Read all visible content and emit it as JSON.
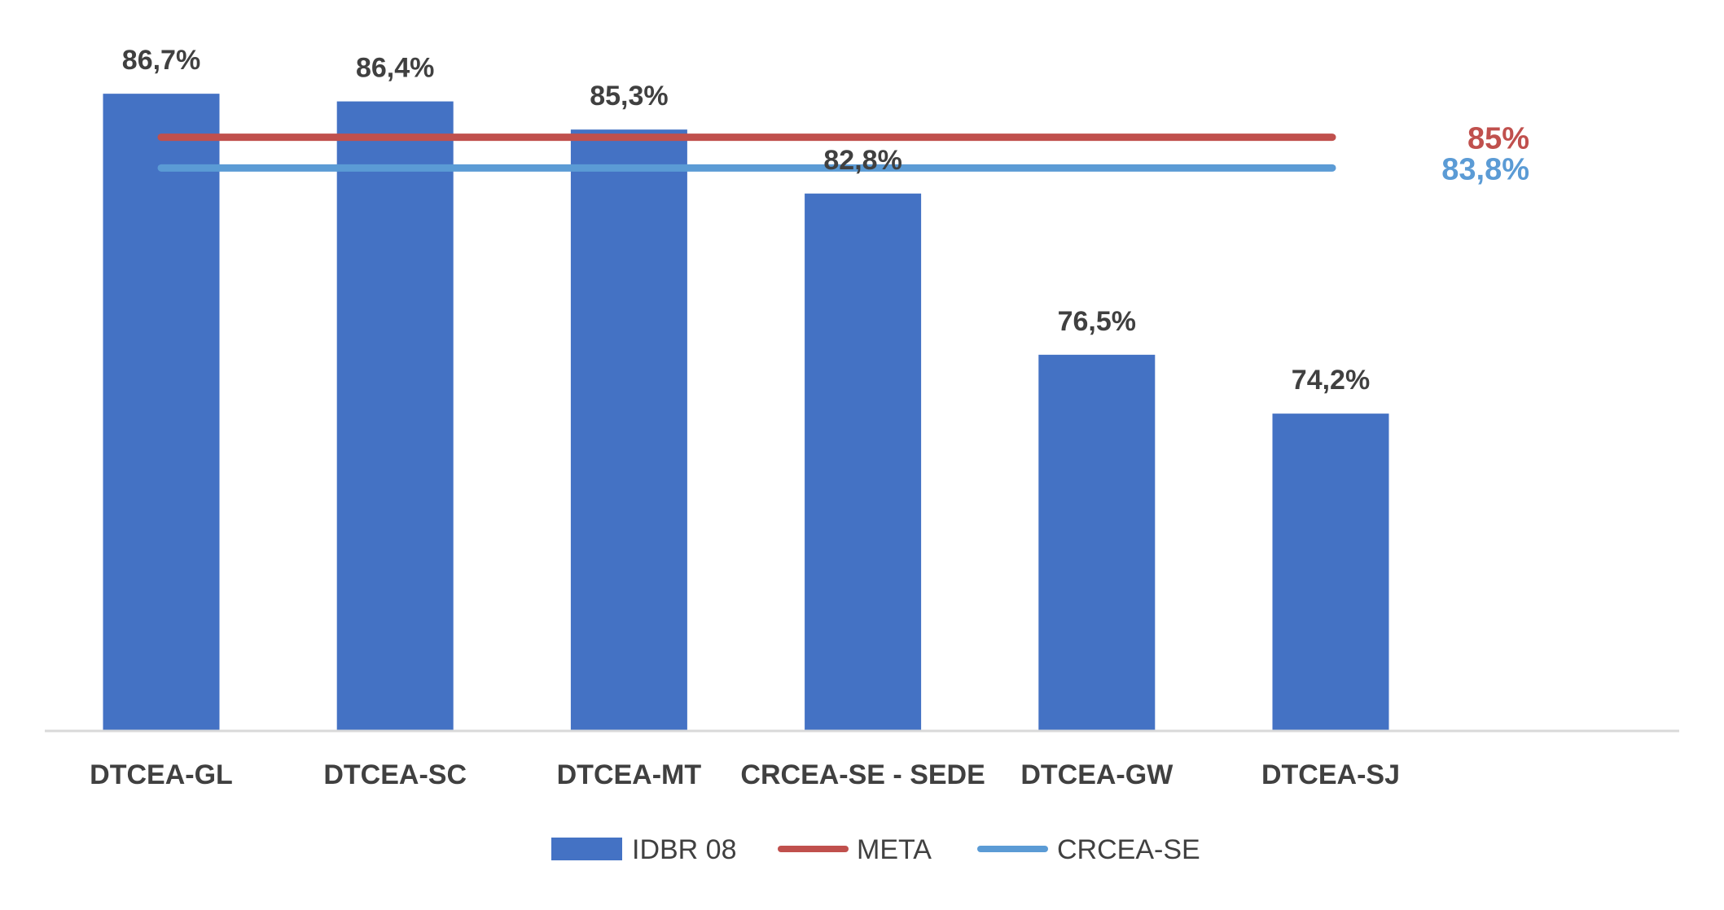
{
  "chart_data": {
    "type": "bar",
    "categories": [
      "DTCEA-GL",
      "DTCEA-SC",
      "DTCEA-MT",
      "CRCEA-SE - SEDE",
      "DTCEA-GW",
      "DTCEA-SJ"
    ],
    "series": [
      {
        "name": "IDBR 08",
        "kind": "bar",
        "color": "#4472C4",
        "values": [
          86.7,
          86.4,
          85.3,
          82.8,
          76.5,
          74.2
        ],
        "labels": [
          "86,7%",
          "86,4%",
          "85,3%",
          "82,8%",
          "76,5%",
          "74,2%"
        ]
      },
      {
        "name": "META",
        "kind": "line",
        "color": "#C0504D",
        "value": 85,
        "label": "85%"
      },
      {
        "name": "CRCEA-SE",
        "kind": "line",
        "color": "#5B9BD5",
        "value": 83.8,
        "label": "83,8%"
      }
    ],
    "ylim": [
      61.8,
      87.5
    ],
    "grid": false,
    "legend_position": "bottom",
    "title": "",
    "xlabel": "",
    "ylabel": ""
  },
  "legend": {
    "items": [
      {
        "label": "IDBR 08",
        "color": "#4472C4",
        "marker": "bar"
      },
      {
        "label": "META",
        "color": "#C0504D",
        "marker": "line"
      },
      {
        "label": "CRCEA-SE",
        "color": "#5B9BD5",
        "marker": "line"
      }
    ]
  }
}
